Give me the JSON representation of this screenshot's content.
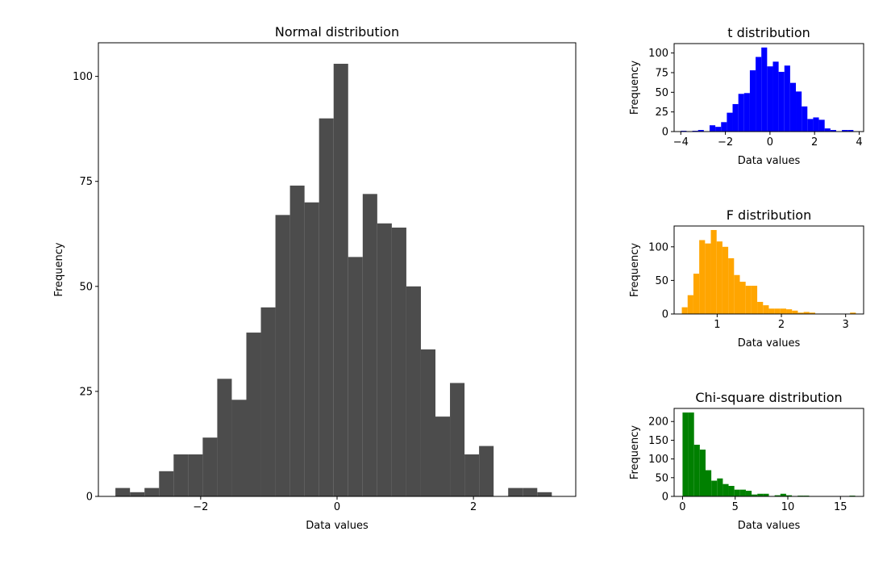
{
  "chart_data": [
    {
      "type": "bar",
      "title": "Normal distribution",
      "xlabel": "Data values",
      "ylabel": "Frequency",
      "xlim": [
        -3.5,
        3.5
      ],
      "ylim": [
        0,
        108
      ],
      "xticks": [
        -2,
        0,
        2
      ],
      "xtick_labels": [
        "−2",
        "0",
        "2"
      ],
      "yticks": [
        0,
        25,
        50,
        75,
        100
      ],
      "ytick_labels": [
        "0",
        "25",
        "50",
        "75",
        "100"
      ],
      "color": "#4c4c4c",
      "bin_start": -3.25,
      "bin_width": 0.2133,
      "values": [
        2,
        1,
        2,
        6,
        10,
        10,
        14,
        28,
        23,
        39,
        45,
        67,
        74,
        70,
        90,
        103,
        57,
        72,
        65,
        64,
        50,
        35,
        19,
        27,
        10,
        12,
        0,
        2,
        2,
        1
      ]
    },
    {
      "type": "bar",
      "title": "t distribution",
      "xlabel": "Data values",
      "ylabel": "Frequency",
      "xlim": [
        -4.3,
        4.2
      ],
      "ylim": [
        0,
        112
      ],
      "xticks": [
        -4,
        -2,
        0,
        2,
        4
      ],
      "xtick_labels": [
        "−4",
        "−2",
        "0",
        "2",
        "4"
      ],
      "yticks": [
        0,
        25,
        50,
        75,
        100
      ],
      "ytick_labels": [
        "0",
        "25",
        "50",
        "75",
        "100"
      ],
      "color": "#0000ff",
      "bin_start": -4.0,
      "bin_width": 0.2581,
      "values": [
        1,
        0,
        1,
        2,
        0,
        8,
        6,
        12,
        24,
        35,
        48,
        49,
        78,
        95,
        107,
        83,
        89,
        76,
        84,
        62,
        51,
        32,
        16,
        18,
        15,
        4,
        2,
        0,
        2,
        2,
        0
      ]
    },
    {
      "type": "bar",
      "title": "F distribution",
      "xlabel": "Data values",
      "ylabel": "Frequency",
      "xlim": [
        0.33,
        3.28
      ],
      "ylim": [
        0,
        131
      ],
      "xticks": [
        1,
        2,
        3
      ],
      "xtick_labels": [
        "1",
        "2",
        "3"
      ],
      "yticks": [
        0,
        50,
        100
      ],
      "ytick_labels": [
        "0",
        "50",
        "100"
      ],
      "color": "#ffa500",
      "bin_start": 0.45,
      "bin_width": 0.0903,
      "values": [
        10,
        28,
        60,
        110,
        105,
        125,
        108,
        100,
        83,
        58,
        48,
        42,
        42,
        18,
        13,
        8,
        8,
        8,
        7,
        5,
        2,
        3,
        2,
        0,
        0,
        0,
        0,
        0,
        0,
        2
      ]
    },
    {
      "type": "bar",
      "title": "Chi-square distribution",
      "xlabel": "Data values",
      "ylabel": "Frequency",
      "xlim": [
        -0.8,
        17.2
      ],
      "ylim": [
        0,
        235
      ],
      "xticks": [
        0,
        5,
        10,
        15
      ],
      "xtick_labels": [
        "0",
        "5",
        "10",
        "15"
      ],
      "yticks": [
        0,
        50,
        100,
        150,
        200
      ],
      "ytick_labels": [
        "0",
        "50",
        "100",
        "150",
        "200"
      ],
      "color": "#008000",
      "bin_start": 0.0,
      "bin_width": 0.5467,
      "values": [
        224,
        224,
        138,
        125,
        70,
        42,
        48,
        33,
        28,
        18,
        18,
        15,
        5,
        7,
        7,
        0,
        3,
        7,
        3,
        0,
        2,
        2,
        0,
        0,
        0,
        0,
        0,
        0,
        0,
        2
      ]
    }
  ]
}
